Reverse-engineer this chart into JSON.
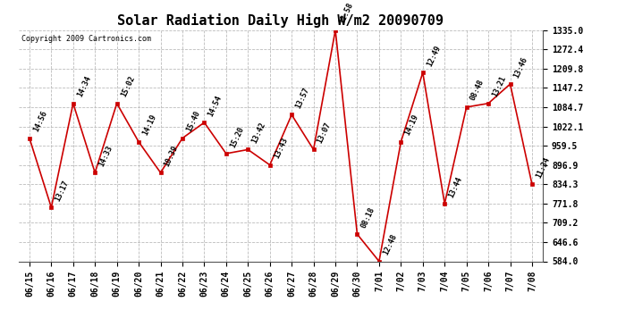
{
  "title": "Solar Radiation Daily High W/m2 20090709",
  "copyright": "Copyright 2009 Cartronics.com",
  "dates": [
    "06/15",
    "06/16",
    "06/17",
    "06/18",
    "06/19",
    "06/20",
    "06/21",
    "06/22",
    "06/23",
    "06/24",
    "06/25",
    "06/26",
    "06/27",
    "06/28",
    "06/29",
    "06/30",
    "7/01",
    "7/02",
    "7/03",
    "7/04",
    "7/05",
    "7/06",
    "7/07",
    "7/08"
  ],
  "x_labels": [
    "06/15",
    "06/16",
    "06/17",
    "06/18",
    "06/19",
    "06/20",
    "06/21",
    "06/22",
    "06/23",
    "06/24",
    "06/25",
    "06/26",
    "06/27",
    "06/28",
    "06/29",
    "06/30",
    "7/01",
    "7/02",
    "7/03",
    "7/04",
    "7/05",
    "7/06",
    "7/07",
    "7/08"
  ],
  "values": [
    984,
    759,
    1097,
    872,
    1097,
    972,
    872,
    984,
    1035,
    934,
    947,
    897,
    1060,
    947,
    1335,
    672,
    584,
    972,
    1197,
    771,
    1085,
    1097,
    1160,
    834
  ],
  "time_labels": [
    "14:56",
    "13:17",
    "14:34",
    "14:33",
    "15:02",
    "14:19",
    "10:39",
    "15:40",
    "14:54",
    "15:20",
    "13:42",
    "13:43",
    "13:57",
    "13:07",
    "12:58",
    "08:18",
    "12:48",
    "14:19",
    "12:49",
    "13:44",
    "08:48",
    "13:21",
    "13:46",
    "11:34"
  ],
  "line_color": "#cc0000",
  "marker_color": "#cc0000",
  "bg_color": "#ffffff",
  "grid_color": "#bbbbbb",
  "ylim": [
    584.0,
    1335.0
  ],
  "yticks": [
    584.0,
    646.6,
    709.2,
    771.8,
    834.3,
    896.9,
    959.5,
    1022.1,
    1084.7,
    1147.2,
    1209.8,
    1272.4,
    1335.0
  ],
  "title_fontsize": 11,
  "tick_fontsize": 7,
  "annot_fontsize": 6,
  "copyright_fontsize": 6
}
